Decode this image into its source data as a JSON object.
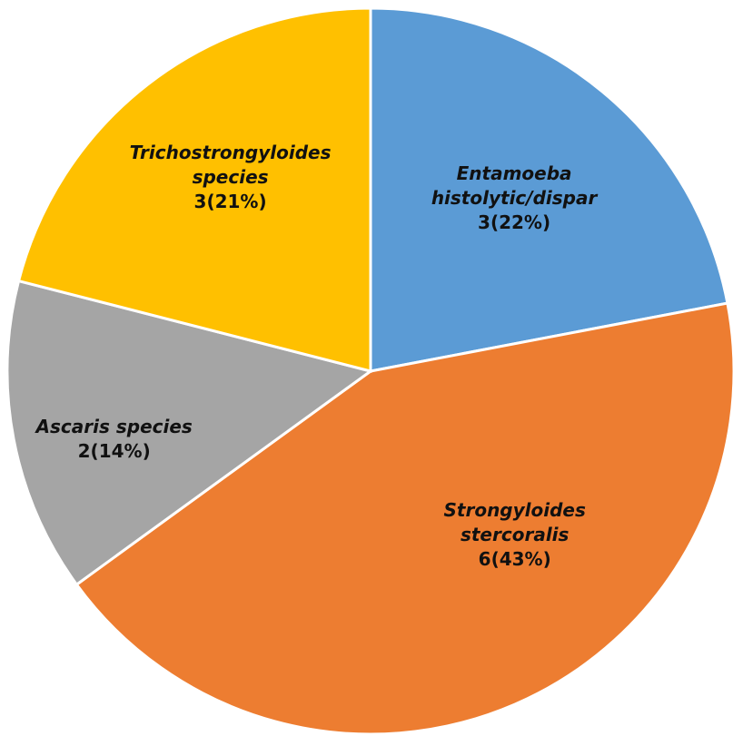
{
  "chart_data": {
    "type": "pie",
    "title": "",
    "start_angle_deg": 0,
    "direction": "clockwise",
    "slices": [
      {
        "name_lines": [
          "Entamoeba",
          "histolytic/dispar"
        ],
        "count": 3,
        "percent": 22,
        "value_label": "3(22%)",
        "color": "#5b9bd5"
      },
      {
        "name_lines": [
          "Strongyloides",
          "stercoralis"
        ],
        "count": 6,
        "percent": 43,
        "value_label": "6(43%)",
        "color": "#ed7d31"
      },
      {
        "name_lines": [
          "Ascaris species"
        ],
        "count": 2,
        "percent": 14,
        "value_label": "2(14%)",
        "color": "#a5a5a5"
      },
      {
        "name_lines": [
          "Trichostrongyloides",
          "species"
        ],
        "count": 3,
        "percent": 21,
        "value_label": "3(21%)",
        "color": "#ffc000"
      }
    ]
  }
}
